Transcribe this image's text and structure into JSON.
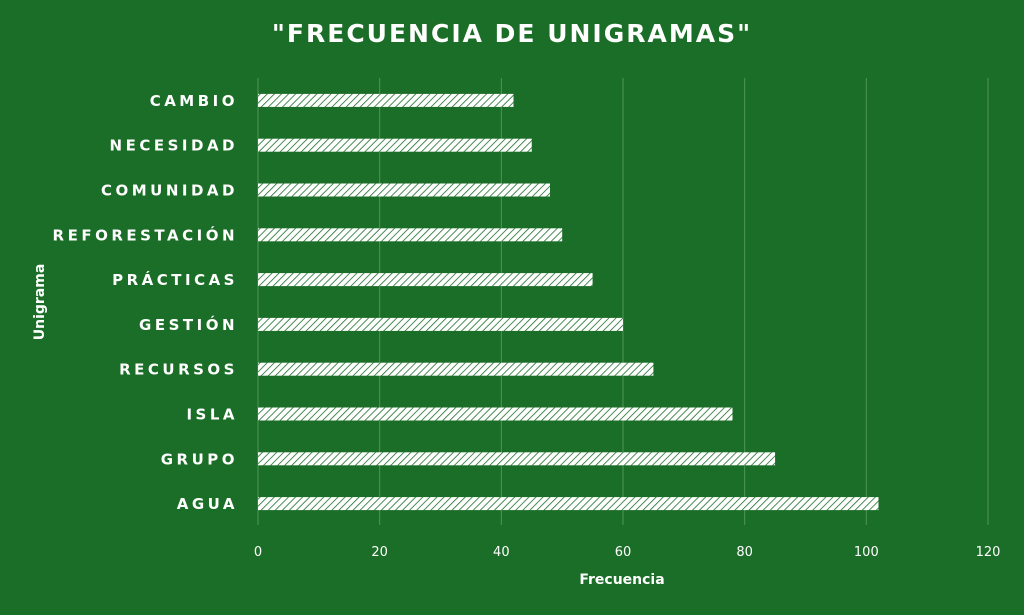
{
  "chart_data": {
    "type": "bar",
    "orientation": "horizontal",
    "title": "\"FRECUENCIA DE UNIGRAMAS\"",
    "xlabel": "Frecuencia",
    "ylabel": "Unigrama",
    "categories": [
      "CAMBIO",
      "NECESIDAD",
      "COMUNIDAD",
      "REFORESTACIÓN",
      "PRÁCTICAS",
      "GESTIÓN",
      "RECURSOS",
      "ISLA",
      "GRUPO",
      "AGUA"
    ],
    "values": [
      42,
      45,
      48,
      50,
      55,
      60,
      65,
      78,
      85,
      102
    ],
    "xlim": [
      0,
      120
    ],
    "xticks": [
      0,
      20,
      40,
      60,
      80,
      100,
      120
    ],
    "grid": true,
    "legend": "none",
    "colors": {
      "background": "#1b6e27",
      "bar_fill": "#ffffff",
      "bar_hatch": "#1b6e27",
      "grid": "#4f9458",
      "text": "#ffffff"
    }
  }
}
